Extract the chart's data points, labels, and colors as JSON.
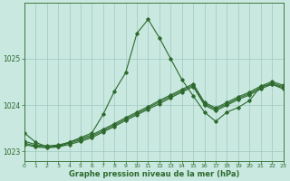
{
  "x": [
    0,
    1,
    2,
    3,
    4,
    5,
    6,
    7,
    8,
    9,
    10,
    11,
    12,
    13,
    14,
    15,
    16,
    17,
    18,
    19,
    20,
    21,
    22,
    23
  ],
  "y_main": [
    1023.4,
    1023.2,
    1023.1,
    1023.1,
    1023.2,
    1023.3,
    1023.4,
    1023.8,
    1024.3,
    1024.7,
    1025.55,
    1025.85,
    1025.45,
    1025.0,
    1024.55,
    1024.2,
    1023.85,
    1023.65,
    1023.85,
    1023.95,
    1024.1,
    1024.4,
    1024.45,
    1024.35
  ],
  "bundle_lines": [
    [
      1023.15,
      1023.1,
      1023.08,
      1023.1,
      1023.15,
      1023.22,
      1023.3,
      1023.42,
      1023.54,
      1023.67,
      1023.79,
      1023.91,
      1024.03,
      1024.16,
      1024.28,
      1024.4,
      1024.0,
      1023.88,
      1024.0,
      1024.12,
      1024.22,
      1024.35,
      1024.45,
      1024.38
    ],
    [
      1023.18,
      1023.12,
      1023.1,
      1023.12,
      1023.18,
      1023.25,
      1023.33,
      1023.45,
      1023.57,
      1023.7,
      1023.82,
      1023.94,
      1024.07,
      1024.19,
      1024.31,
      1024.43,
      1024.03,
      1023.91,
      1024.03,
      1024.15,
      1024.25,
      1024.38,
      1024.48,
      1024.4
    ],
    [
      1023.22,
      1023.15,
      1023.12,
      1023.14,
      1023.2,
      1023.28,
      1023.36,
      1023.48,
      1023.6,
      1023.73,
      1023.85,
      1023.97,
      1024.1,
      1024.22,
      1024.34,
      1024.46,
      1024.06,
      1023.94,
      1024.06,
      1024.18,
      1024.28,
      1024.41,
      1024.51,
      1024.43
    ]
  ],
  "xlim": [
    0,
    23
  ],
  "ylim": [
    1022.8,
    1026.2
  ],
  "yticks": [
    1023,
    1024,
    1025
  ],
  "xticks": [
    0,
    1,
    2,
    3,
    4,
    5,
    6,
    7,
    8,
    9,
    10,
    11,
    12,
    13,
    14,
    15,
    16,
    17,
    18,
    19,
    20,
    21,
    22,
    23
  ],
  "line_color": "#2d6a2d",
  "bg_color": "#c8e8e0",
  "grid_color": "#a0c8c0",
  "xlabel": "Graphe pression niveau de la mer (hPa)",
  "xlabel_color": "#2d6a2d",
  "tick_color": "#2d6a2d",
  "marker": "D",
  "marker_size": 1.8,
  "line_width": 0.8,
  "figsize": [
    3.2,
    2.0
  ],
  "dpi": 100
}
